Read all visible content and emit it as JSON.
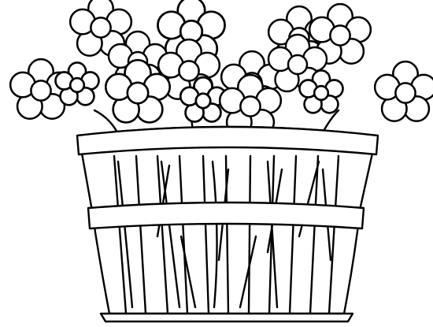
{
  "image": {
    "subject": "flowers-in-basket",
    "style": "black-and-white line art",
    "colors": {
      "background": "#ffffff",
      "ink": "#000000"
    }
  }
}
